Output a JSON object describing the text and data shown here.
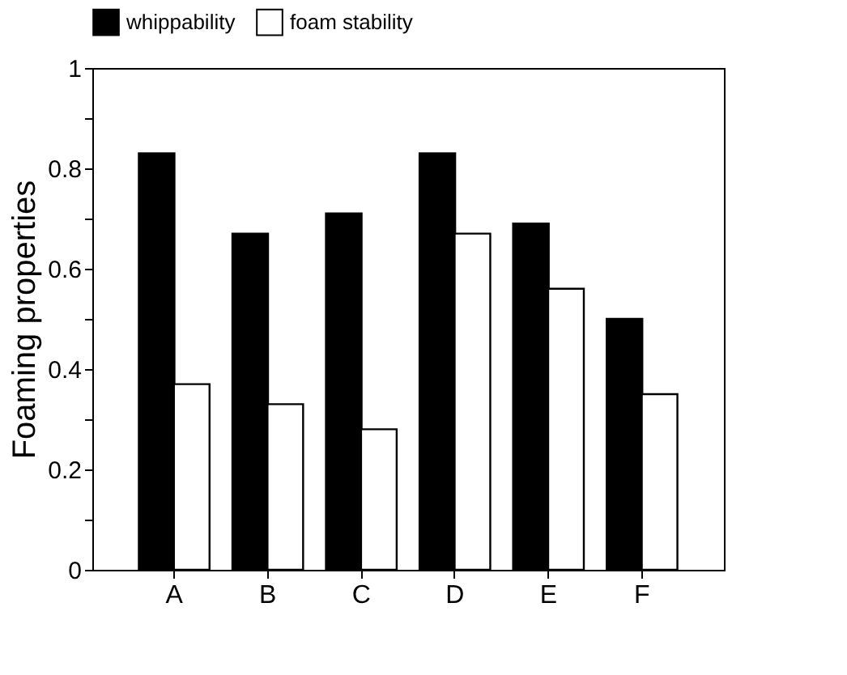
{
  "chart_data": {
    "type": "bar",
    "ylabel": "Foaming properties",
    "categories": [
      "A",
      "B",
      "C",
      "D",
      "E",
      "F"
    ],
    "series": [
      {
        "name": "whippability",
        "color": "#000000",
        "values": [
          0.83,
          0.67,
          0.71,
          0.83,
          0.69,
          0.5
        ]
      },
      {
        "name": "foam stability",
        "color": "#ffffff",
        "values": [
          0.37,
          0.33,
          0.28,
          0.67,
          0.56,
          0.35
        ]
      }
    ],
    "ylim": [
      0,
      1
    ],
    "yticks": [
      0,
      {
        "value": 0.1,
        "label": null
      },
      0.2,
      {
        "value": 0.3,
        "label": null
      },
      0.4,
      {
        "value": 0.5,
        "label": null
      },
      0.6,
      {
        "value": 0.7,
        "label": null
      },
      0.8,
      {
        "value": 0.9,
        "label": null
      },
      1
    ],
    "grid": false,
    "legend": "top"
  }
}
